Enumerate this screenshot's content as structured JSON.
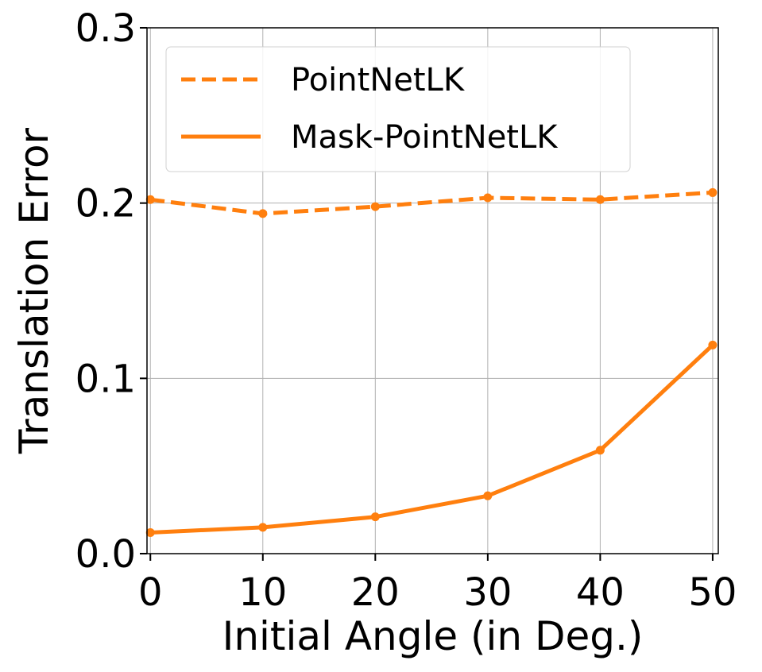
{
  "chart_data": {
    "type": "line",
    "xlabel": "Initial Angle (in Deg.)",
    "ylabel": "Translation Error",
    "x": [
      0,
      10,
      20,
      30,
      40,
      50
    ],
    "xlim": [
      -0.3,
      50.5
    ],
    "ylim": [
      0.0,
      0.3
    ],
    "xticks": [
      0,
      10,
      20,
      30,
      40,
      50
    ],
    "yticks": [
      0.0,
      0.1,
      0.2,
      0.3
    ],
    "xtick_labels": [
      "0",
      "10",
      "20",
      "30",
      "40",
      "50"
    ],
    "ytick_labels": [
      "0.0",
      "0.1",
      "0.2",
      "0.3"
    ],
    "grid": true,
    "legend_position": "top",
    "series": [
      {
        "name": "PointNetLK",
        "style": "dashed",
        "color": "#ff7f0e",
        "values": [
          0.202,
          0.194,
          0.198,
          0.203,
          0.202,
          0.206
        ]
      },
      {
        "name": "Mask-PointNetLK",
        "style": "solid",
        "color": "#ff7f0e",
        "values": [
          0.012,
          0.015,
          0.021,
          0.033,
          0.059,
          0.119
        ]
      }
    ]
  }
}
